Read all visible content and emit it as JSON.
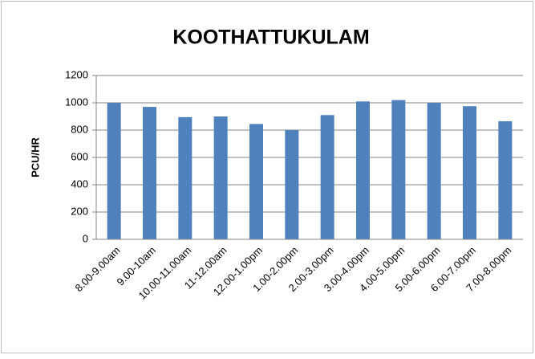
{
  "chart_data": {
    "type": "bar",
    "title": "KOOTHATTUKULAM",
    "y_label": "PCU/HR",
    "categories": [
      "8.00-9.00am",
      "9.00-10am",
      "10.00-11.00am",
      "11-12.00am",
      "12.00-1.00pm",
      "1.00-2.00pm",
      "2.00-3.00pm",
      "3.00-4.00pm",
      "4.00-5.00pm",
      "5.00-6.00pm",
      "6.00-7.00pm",
      "7.00-8.00pm"
    ],
    "values": [
      1000,
      970,
      895,
      900,
      845,
      800,
      910,
      1010,
      1020,
      1000,
      975,
      865
    ],
    "color": "#4f81bd",
    "ylim": [
      0,
      1200
    ],
    "yticks": [
      0,
      200,
      400,
      600,
      800,
      1000,
      1200
    ],
    "grid": true
  }
}
